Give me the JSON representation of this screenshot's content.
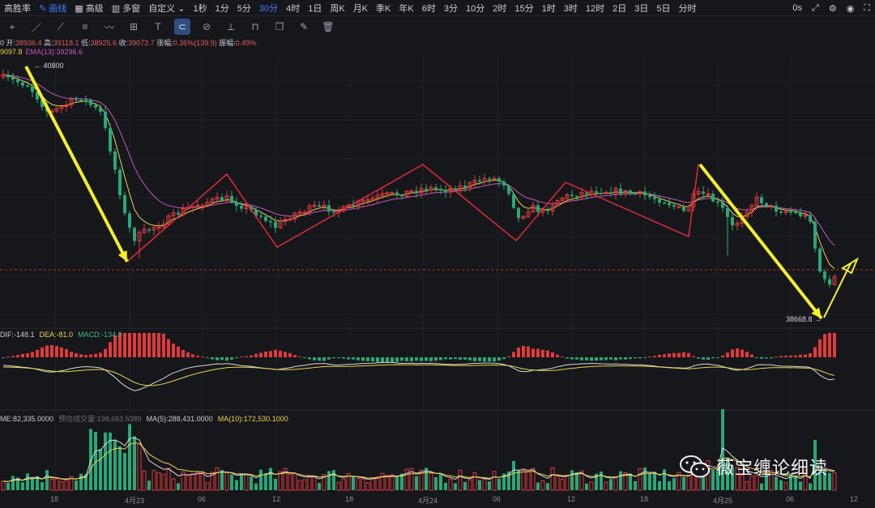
{
  "topbar": {
    "items": [
      {
        "label": "高胜率",
        "active": false
      },
      {
        "label": "画线",
        "active": true,
        "icon": "pencil-icon"
      },
      {
        "label": "高级",
        "active": false,
        "icon": "calendar-icon"
      },
      {
        "label": "多窗",
        "active": false,
        "icon": "grid-icon"
      },
      {
        "label": "自定义",
        "active": false,
        "icon": "chevron-down-icon"
      },
      {
        "label": "1秒",
        "active": false
      },
      {
        "label": "1分",
        "active": false
      },
      {
        "label": "5分",
        "active": false
      },
      {
        "label": "30分",
        "active": true
      },
      {
        "label": "4时",
        "active": false
      },
      {
        "label": "1日",
        "active": false
      },
      {
        "label": "周K",
        "active": false
      },
      {
        "label": "月K",
        "active": false
      },
      {
        "label": "季K",
        "active": false
      },
      {
        "label": "年K",
        "active": false
      },
      {
        "label": "6时",
        "active": false
      },
      {
        "label": "3分",
        "active": false
      },
      {
        "label": "10分",
        "active": false
      },
      {
        "label": "2时",
        "active": false
      },
      {
        "label": "15分",
        "active": false
      },
      {
        "label": "1时",
        "active": false
      },
      {
        "label": "3时",
        "active": false
      },
      {
        "label": "12时",
        "active": false
      },
      {
        "label": "2日",
        "active": false
      },
      {
        "label": "3日",
        "active": false
      },
      {
        "label": "5日",
        "active": false
      },
      {
        "label": "分时",
        "active": false
      }
    ],
    "right_text": "0s"
  },
  "toolbar_icons": [
    "cursor-icon",
    "line-icon",
    "ray-icon",
    "horizontal-lines-icon",
    "wave-icon",
    "crosshair-icon",
    "text-icon",
    "magnet-icon",
    "visibility-icon",
    "ruler-icon",
    "lock-icon",
    "copy-icon",
    "edit-icon",
    "trash-icon"
  ],
  "ohlc": {
    "prefix": "0 ",
    "open_label": "开:",
    "open": "38936.4",
    "high_label": "高:",
    "high": "39118.1",
    "low_label": "低:",
    "low": "38925.6",
    "close_label": "收:",
    "close": "39073.7",
    "change_label": "涨幅:",
    "change": "0.36%(139.9)",
    "amplitude_label": "振幅:",
    "amplitude": "0.49%"
  },
  "ema": {
    "ema1": "9097.8",
    "ema2": "EMA(13):39296.6"
  },
  "macd": {
    "dif": "DIF:-148.1",
    "dea": "DEA:-81.0",
    "macd": "MACD:-134.0"
  },
  "volume": {
    "vol": "ME:82,335.0000",
    "est": "预估成交量:198,663.5389",
    "ma5": "MA(5):288,431.0000",
    "ma10": "MA(10):172,530.1000"
  },
  "price_annotations": {
    "high_marker": "40800",
    "low_marker": "38668.8"
  },
  "xaxis": [
    {
      "label": "18"
    },
    {
      "label": "4月23"
    },
    {
      "label": "06"
    },
    {
      "label": "12"
    },
    {
      "label": "18"
    },
    {
      "label": "4月24"
    },
    {
      "label": "06"
    },
    {
      "label": "12"
    },
    {
      "label": "18"
    },
    {
      "label": "4月25"
    },
    {
      "label": "06"
    },
    {
      "label": "12"
    }
  ],
  "colors": {
    "up": "#e03a3a",
    "down": "#27a87a",
    "ema_fast": "#e8d44a",
    "ema_slow": "#c558b8",
    "arrow": "#f5ee2a",
    "zigzag": "#e02a3a",
    "background": "#16171b"
  },
  "watermark": {
    "text": "薇宝缠论细读",
    "icon": "wechat-icon"
  }
}
